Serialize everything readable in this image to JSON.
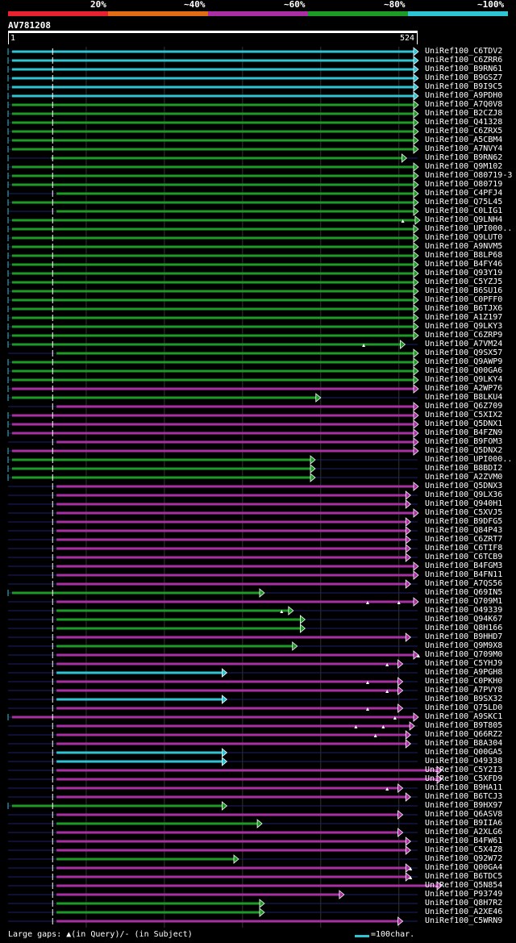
{
  "legend": {
    "labels": [
      "20%",
      "~40%",
      "~60%",
      "~80%",
      "~100%"
    ],
    "colors": [
      "#e8222e",
      "#e26b15",
      "#a92fa3",
      "#1d9b26",
      "#2fc4d3"
    ]
  },
  "query": {
    "name": "AV781208",
    "start": "1",
    "end": "524",
    "length": 524
  },
  "footer": {
    "gaps_text": "Large gaps: ▲(in Query)/- (in Subject)",
    "scale_text": "=100char."
  },
  "identity_colors": {
    "cyan": "#2fc4d3",
    "green": "#1d9b26",
    "purple": "#a92fa3"
  },
  "hits": [
    {
      "name": "UniRef100_C6TDV2",
      "color": "cyan",
      "start": 5,
      "end": 525,
      "lead": true
    },
    {
      "name": "UniRef100_C6ZRR6",
      "color": "cyan",
      "start": 5,
      "end": 525,
      "lead": true
    },
    {
      "name": "UniRef100_B9RN61",
      "color": "cyan",
      "start": 5,
      "end": 525,
      "lead": true
    },
    {
      "name": "UniRef100_B9GSZ7",
      "color": "cyan",
      "start": 5,
      "end": 525,
      "lead": true
    },
    {
      "name": "UniRef100_B9I9C5",
      "color": "cyan",
      "start": 5,
      "end": 525,
      "lead": true
    },
    {
      "name": "UniRef100_A9PDH0",
      "color": "cyan",
      "start": 5,
      "end": 525,
      "lead": true
    },
    {
      "name": "UniRef100_A7Q0V8",
      "color": "green",
      "start": 5,
      "end": 525,
      "lead": true
    },
    {
      "name": "UniRef100_B2CZJ8",
      "color": "green",
      "start": 5,
      "end": 525,
      "lead": true
    },
    {
      "name": "UniRef100_Q41328",
      "color": "green",
      "start": 5,
      "end": 525,
      "lead": true
    },
    {
      "name": "UniRef100_C6ZRX5",
      "color": "green",
      "start": 5,
      "end": 525,
      "lead": true
    },
    {
      "name": "UniRef100_A5CBM4",
      "color": "green",
      "start": 5,
      "end": 525,
      "lead": true
    },
    {
      "name": "UniRef100_A7NVY4",
      "color": "green",
      "start": 5,
      "end": 525,
      "lead": true
    },
    {
      "name": "UniRef100_B9RN62",
      "color": "green",
      "start": 55,
      "end": 510,
      "lead": true
    },
    {
      "name": "UniRef100_Q9M102",
      "color": "green",
      "start": 5,
      "end": 525,
      "lead": true
    },
    {
      "name": "UniRef100_O80719-3",
      "color": "green",
      "start": 5,
      "end": 525,
      "lead": true
    },
    {
      "name": "UniRef100_O80719",
      "color": "green",
      "start": 5,
      "end": 525,
      "lead": true
    },
    {
      "name": "UniRef100_C4PFJ4",
      "color": "green",
      "start": 62,
      "end": 525,
      "lead": true
    },
    {
      "name": "UniRef100_Q75L45",
      "color": "green",
      "start": 5,
      "end": 525,
      "lead": true
    },
    {
      "name": "UniRef100_C0LIG1",
      "color": "green",
      "start": 62,
      "end": 525,
      "lead": true
    },
    {
      "name": "UniRef100_Q9LNH4",
      "color": "green",
      "start": 5,
      "end": 527,
      "lead": true,
      "gaps": [
        505
      ]
    },
    {
      "name": "UniRef100_UPI000..",
      "color": "green",
      "start": 5,
      "end": 525,
      "lead": true
    },
    {
      "name": "UniRef100_Q9LUT0",
      "color": "green",
      "start": 5,
      "end": 525,
      "lead": true
    },
    {
      "name": "UniRef100_A9NVM5",
      "color": "green",
      "start": 5,
      "end": 525,
      "lead": true
    },
    {
      "name": "UniRef100_B8LP68",
      "color": "green",
      "start": 5,
      "end": 525,
      "lead": true
    },
    {
      "name": "UniRef100_B4FY46",
      "color": "green",
      "start": 5,
      "end": 525,
      "lead": true
    },
    {
      "name": "UniRef100_Q93Y19",
      "color": "green",
      "start": 5,
      "end": 525,
      "lead": true
    },
    {
      "name": "UniRef100_C5YZJ5",
      "color": "green",
      "start": 5,
      "end": 525,
      "lead": true
    },
    {
      "name": "UniRef100_B6SU16",
      "color": "green",
      "start": 5,
      "end": 525,
      "lead": true
    },
    {
      "name": "UniRef100_C0PFF0",
      "color": "green",
      "start": 5,
      "end": 525,
      "lead": true
    },
    {
      "name": "UniRef100_B6TJX6",
      "color": "green",
      "start": 5,
      "end": 525,
      "lead": true
    },
    {
      "name": "UniRef100_A1Z197",
      "color": "green",
      "start": 5,
      "end": 525,
      "lead": true
    },
    {
      "name": "UniRef100_Q9LKY3",
      "color": "green",
      "start": 5,
      "end": 525,
      "lead": true
    },
    {
      "name": "UniRef100_C6ZRP9",
      "color": "green",
      "start": 5,
      "end": 525,
      "lead": true
    },
    {
      "name": "UniRef100_A7VM24",
      "color": "green",
      "start": 5,
      "end": 508,
      "lead": true,
      "gaps": [
        455
      ]
    },
    {
      "name": "UniRef100_Q9SX57",
      "color": "green",
      "start": 62,
      "end": 525,
      "lead": false
    },
    {
      "name": "UniRef100_Q9AWP9",
      "color": "green",
      "start": 5,
      "end": 525,
      "lead": true
    },
    {
      "name": "UniRef100_Q00GA6",
      "color": "green",
      "start": 5,
      "end": 525,
      "lead": true
    },
    {
      "name": "UniRef100_Q9LKY4",
      "color": "green",
      "start": 5,
      "end": 525,
      "lead": true
    },
    {
      "name": "UniRef100_A2WP76",
      "color": "purple",
      "start": 5,
      "end": 525,
      "lead": true
    },
    {
      "name": "UniRef100_B8LKU4",
      "color": "green",
      "start": 5,
      "end": 400,
      "lead": true
    },
    {
      "name": "UniRef100_Q6Z709",
      "color": "purple",
      "start": 62,
      "end": 525,
      "lead": false
    },
    {
      "name": "UniRef100_C5XIX2",
      "color": "purple",
      "start": 5,
      "end": 525,
      "lead": true
    },
    {
      "name": "UniRef100_Q5DNX1",
      "color": "purple",
      "start": 5,
      "end": 525,
      "lead": true
    },
    {
      "name": "UniRef100_B4FZN9",
      "color": "purple",
      "start": 5,
      "end": 525,
      "lead": true
    },
    {
      "name": "UniRef100_B9FOM3",
      "color": "purple",
      "start": 62,
      "end": 525,
      "lead": false
    },
    {
      "name": "UniRef100_Q5DNX2",
      "color": "purple",
      "start": 5,
      "end": 525,
      "lead": true
    },
    {
      "name": "UniRef100_UPI000..",
      "color": "green",
      "start": 5,
      "end": 393,
      "lead": true
    },
    {
      "name": "UniRef100_B8BDI2",
      "color": "green",
      "start": 5,
      "end": 393,
      "lead": true
    },
    {
      "name": "UniRef100_A2ZVM0",
      "color": "green",
      "start": 5,
      "end": 393,
      "lead": true
    },
    {
      "name": "UniRef100_Q5DNX3",
      "color": "purple",
      "start": 62,
      "end": 525,
      "lead": false
    },
    {
      "name": "UniRef100_Q9LX36",
      "color": "purple",
      "start": 62,
      "end": 515,
      "lead": false
    },
    {
      "name": "UniRef100_Q940H1",
      "color": "purple",
      "start": 62,
      "end": 515,
      "lead": false
    },
    {
      "name": "UniRef100_C5XVJ5",
      "color": "purple",
      "start": 62,
      "end": 525,
      "lead": false
    },
    {
      "name": "UniRef100_B9DFG5",
      "color": "purple",
      "start": 62,
      "end": 515,
      "lead": false
    },
    {
      "name": "UniRef100_Q84P43",
      "color": "purple",
      "start": 62,
      "end": 515,
      "lead": false
    },
    {
      "name": "UniRef100_C6ZRT7",
      "color": "purple",
      "start": 62,
      "end": 515,
      "lead": false
    },
    {
      "name": "UniRef100_C6TIF8",
      "color": "purple",
      "start": 62,
      "end": 515,
      "lead": false
    },
    {
      "name": "UniRef100_C6TCB9",
      "color": "purple",
      "start": 62,
      "end": 515,
      "lead": false
    },
    {
      "name": "UniRef100_B4FGM3",
      "color": "purple",
      "start": 62,
      "end": 525,
      "lead": false
    },
    {
      "name": "UniRef100_B4FN11",
      "color": "purple",
      "start": 62,
      "end": 525,
      "lead": false
    },
    {
      "name": "UniRef100_A7QS56",
      "color": "purple",
      "start": 62,
      "end": 515,
      "lead": false
    },
    {
      "name": "UniRef100_Q69IN5",
      "color": "green",
      "start": 5,
      "end": 328,
      "lead": true
    },
    {
      "name": "UniRef100_Q709M1",
      "color": "purple",
      "start": 62,
      "end": 525,
      "lead": false,
      "gaps": [
        460,
        500
      ]
    },
    {
      "name": "UniRef100_O49339",
      "color": "green",
      "start": 62,
      "end": 365,
      "lead": false,
      "gaps": [
        350
      ]
    },
    {
      "name": "UniRef100_Q94K67",
      "color": "green",
      "start": 62,
      "end": 380,
      "lead": false
    },
    {
      "name": "UniRef100_Q8H166",
      "color": "green",
      "start": 62,
      "end": 380,
      "lead": false
    },
    {
      "name": "UniRef100_B9HHD7",
      "color": "purple",
      "start": 62,
      "end": 515,
      "lead": false
    },
    {
      "name": "UniRef100_Q9M9X8",
      "color": "green",
      "start": 62,
      "end": 370,
      "lead": false
    },
    {
      "name": "UniRef100_Q709M0",
      "color": "purple",
      "start": 62,
      "end": 525,
      "lead": false,
      "gaps": [
        525
      ]
    },
    {
      "name": "UniRef100_C5YHJ9",
      "color": "purple",
      "start": 62,
      "end": 505,
      "lead": false,
      "gaps": [
        485
      ]
    },
    {
      "name": "UniRef100_A9PGH8",
      "color": "cyan",
      "start": 62,
      "end": 280,
      "lead": false
    },
    {
      "name": "UniRef100_C0PKH0",
      "color": "purple",
      "start": 62,
      "end": 505,
      "lead": false,
      "gaps": [
        460
      ]
    },
    {
      "name": "UniRef100_A7PVY8",
      "color": "purple",
      "start": 62,
      "end": 505,
      "lead": false,
      "gaps": [
        485
      ]
    },
    {
      "name": "UniRef100_B9SX32",
      "color": "cyan",
      "start": 62,
      "end": 280,
      "lead": false
    },
    {
      "name": "UniRef100_Q75LD0",
      "color": "purple",
      "start": 62,
      "end": 505,
      "lead": false,
      "gaps": [
        460
      ]
    },
    {
      "name": "UniRef100_A9SKC1",
      "color": "purple",
      "start": 5,
      "end": 525,
      "lead": true,
      "gaps": [
        495
      ]
    },
    {
      "name": "UniRef100_B9T805",
      "color": "purple",
      "start": 62,
      "end": 520,
      "lead": false,
      "gaps": [
        445,
        480
      ]
    },
    {
      "name": "UniRef100_Q66RZ2",
      "color": "purple",
      "start": 62,
      "end": 515,
      "lead": false,
      "gaps": [
        470
      ]
    },
    {
      "name": "UniRef100_B8A304",
      "color": "purple",
      "start": 62,
      "end": 515,
      "lead": false
    },
    {
      "name": "UniRef100_Q00GA5",
      "color": "cyan",
      "start": 62,
      "end": 280,
      "lead": false
    },
    {
      "name": "UniRef100_O49338",
      "color": "cyan",
      "start": 62,
      "end": 280,
      "lead": false
    },
    {
      "name": "UniRef100_C5Y2I3",
      "color": "purple",
      "start": 62,
      "end": 555,
      "lead": false
    },
    {
      "name": "UniRef100_C5XFD9",
      "color": "purple",
      "start": 62,
      "end": 555,
      "lead": false
    },
    {
      "name": "UniRef100_B9HA11",
      "color": "purple",
      "start": 62,
      "end": 505,
      "lead": false,
      "gaps": [
        485
      ]
    },
    {
      "name": "UniRef100_B6TCJ3",
      "color": "purple",
      "start": 62,
      "end": 515,
      "lead": false
    },
    {
      "name": "UniRef100_B9HX97",
      "color": "green",
      "start": 5,
      "end": 280,
      "lead": true
    },
    {
      "name": "UniRef100_Q6ASV8",
      "color": "purple",
      "start": 62,
      "end": 505,
      "lead": false
    },
    {
      "name": "UniRef100_B9IIA6",
      "color": "green",
      "start": 62,
      "end": 325,
      "lead": false
    },
    {
      "name": "UniRef100_A2XLG6",
      "color": "purple",
      "start": 62,
      "end": 505,
      "lead": false
    },
    {
      "name": "UniRef100_B4FW61",
      "color": "purple",
      "start": 62,
      "end": 515,
      "lead": false
    },
    {
      "name": "UniRef100_C5X4Z8",
      "color": "purple",
      "start": 62,
      "end": 515,
      "lead": false
    },
    {
      "name": "UniRef100_Q92W72",
      "color": "green",
      "start": 62,
      "end": 295,
      "lead": false
    },
    {
      "name": "UniRef100_Q00GA4",
      "color": "purple",
      "start": 62,
      "end": 515,
      "lead": false,
      "gaps": [
        515
      ]
    },
    {
      "name": "UniRef100_B6TDC5",
      "color": "purple",
      "start": 62,
      "end": 515,
      "lead": false,
      "gaps": [
        515
      ]
    },
    {
      "name": "UniRef100_Q5N854",
      "color": "purple",
      "start": 62,
      "end": 555,
      "lead": false
    },
    {
      "name": "UniRef100_P93749",
      "color": "purple",
      "start": 62,
      "end": 430,
      "lead": false
    },
    {
      "name": "UniRef100_Q8H7R2",
      "color": "green",
      "start": 62,
      "end": 328,
      "lead": false
    },
    {
      "name": "UniRef100_A2XE46",
      "color": "green",
      "start": 62,
      "end": 328,
      "lead": false
    },
    {
      "name": "UniRef100_C5WRN9",
      "color": "purple",
      "start": 62,
      "end": 505,
      "lead": false
    }
  ]
}
